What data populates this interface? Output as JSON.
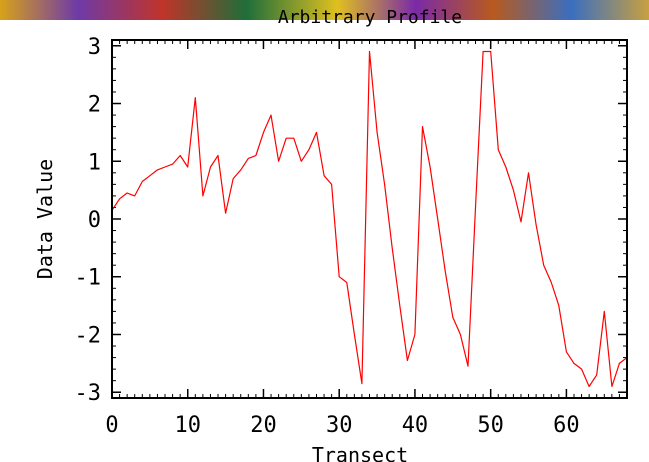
{
  "chart_data": {
    "type": "line",
    "title": "Arbitrary Profile",
    "xlabel": "Transect",
    "ylabel": "Data Value",
    "xlim": [
      0,
      68
    ],
    "ylim": [
      -3.1,
      3.1
    ],
    "xticks": [
      0,
      10,
      20,
      30,
      40,
      50,
      60
    ],
    "yticks": [
      -3,
      -2,
      -1,
      0,
      1,
      2,
      3
    ],
    "grid": false,
    "line_color": "#ff0000",
    "series": [
      {
        "x": [
          0,
          1,
          2,
          3,
          4,
          5,
          6,
          7,
          8,
          9,
          10,
          11,
          12,
          13,
          14,
          15,
          16,
          17,
          18,
          19,
          20,
          21,
          22,
          23,
          24,
          25,
          26,
          27,
          28,
          29,
          30,
          31,
          32,
          33,
          34,
          35,
          36,
          37,
          38,
          39,
          40,
          41,
          42,
          43,
          44,
          45,
          46,
          47,
          48,
          49,
          50,
          51,
          52,
          53,
          54,
          55,
          56,
          57,
          58,
          59,
          60,
          61,
          62,
          63,
          64,
          65,
          66,
          67,
          68
        ],
        "values": [
          0.15,
          0.35,
          0.45,
          0.4,
          0.65,
          0.75,
          0.85,
          0.9,
          0.95,
          1.1,
          0.9,
          2.1,
          0.4,
          0.9,
          1.1,
          0.1,
          0.7,
          0.85,
          1.05,
          1.1,
          1.5,
          1.8,
          1.0,
          1.4,
          1.4,
          1.0,
          1.2,
          1.5,
          0.75,
          0.6,
          -1.0,
          -1.1,
          -2.0,
          -2.85,
          2.9,
          1.5,
          0.6,
          -0.5,
          -1.5,
          -2.45,
          -2.0,
          1.6,
          0.9,
          0.0,
          -0.9,
          -1.7,
          -2.0,
          -2.55,
          0.2,
          2.9,
          2.9,
          1.2,
          0.9,
          0.5,
          -0.05,
          0.8,
          -0.1,
          -0.8,
          -1.1,
          -1.5,
          -2.3,
          -2.5,
          -2.6,
          -2.9,
          -2.7,
          -1.6,
          -2.9,
          -2.5,
          -2.4
        ]
      }
    ]
  }
}
